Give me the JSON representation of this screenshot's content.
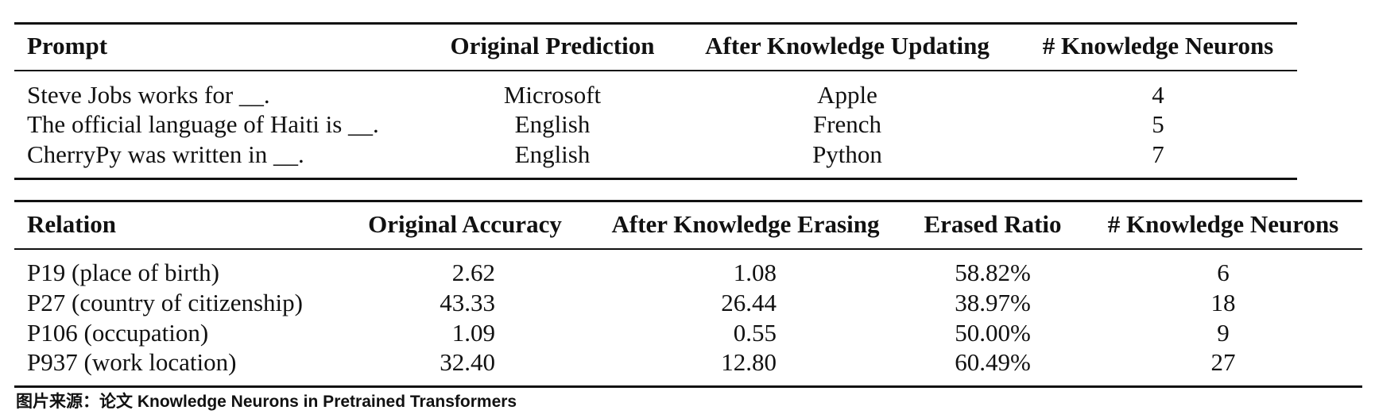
{
  "table1": {
    "headers": [
      "Prompt",
      "Original Prediction",
      "After Knowledge Updating",
      "# Knowledge Neurons"
    ],
    "rows": [
      [
        "Steve Jobs works for __.",
        "Microsoft",
        "Apple",
        "4"
      ],
      [
        "The official language of Haiti is __.",
        "English",
        "French",
        "5"
      ],
      [
        "CherryPy was written in __.",
        "English",
        "Python",
        "7"
      ]
    ]
  },
  "table2": {
    "headers": [
      "Relation",
      "Original Accuracy",
      "After Knowledge Erasing",
      "Erased Ratio",
      "# Knowledge Neurons"
    ],
    "rows": [
      [
        "P19 (place of birth)",
        "2.62",
        "1.08",
        "58.82%",
        "6"
      ],
      [
        "P27 (country of citizenship)",
        "43.33",
        "26.44",
        "38.97%",
        "18"
      ],
      [
        "P106 (occupation)",
        "1.09",
        "0.55",
        "50.00%",
        "9"
      ],
      [
        "P937 (work location)",
        "32.40",
        "12.80",
        "60.49%",
        "27"
      ]
    ]
  },
  "caption": "图片来源：论文 Knowledge Neurons in Pretrained Transformers"
}
